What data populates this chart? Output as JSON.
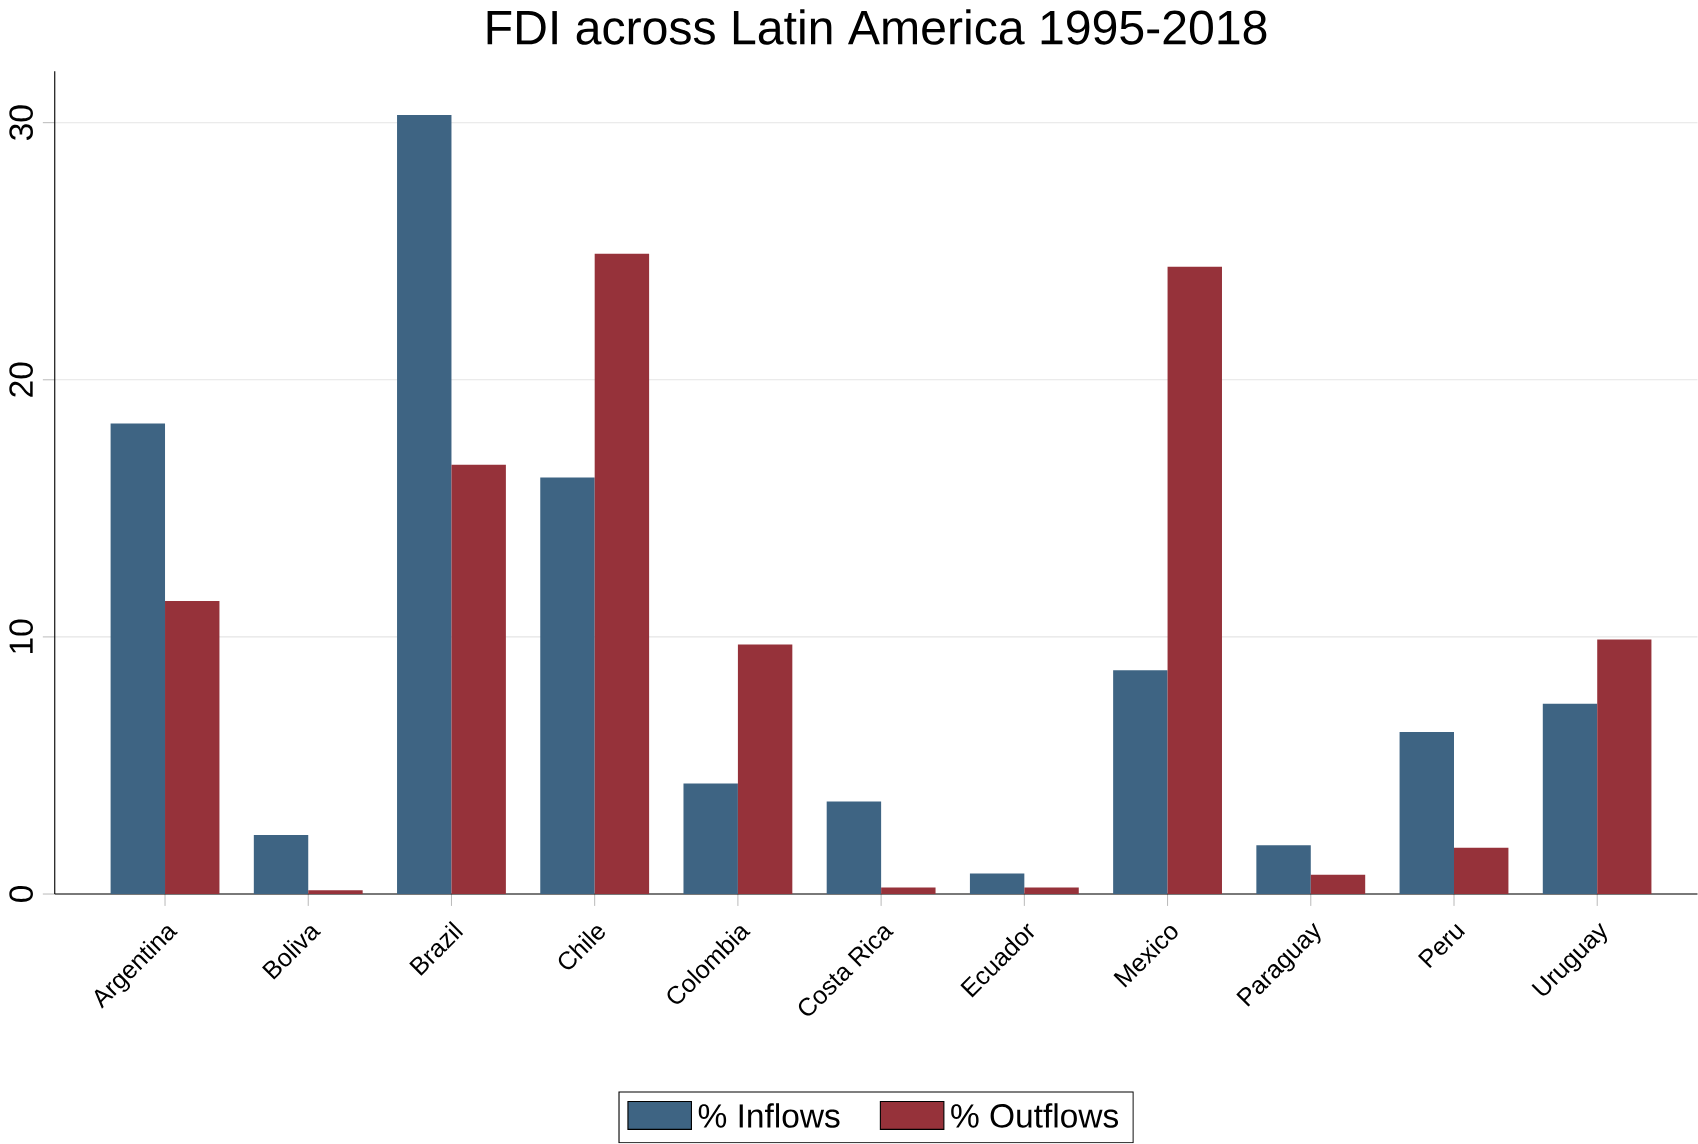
{
  "chart_data": {
    "type": "bar",
    "title": "FDI across Latin America 1995-2018",
    "categories": [
      "Argentina",
      "Boliva",
      "Brazil",
      "Chile",
      "Colombia",
      "Costa Rica",
      "Ecuador",
      "Mexico",
      "Paraguay",
      "Peru",
      "Uruguay"
    ],
    "series": [
      {
        "name": "% Inflows",
        "color": "#3e6483",
        "values": [
          18.3,
          2.3,
          30.3,
          16.2,
          4.3,
          3.6,
          0.8,
          8.7,
          1.9,
          6.3,
          7.4
        ]
      },
      {
        "name": "% Outflows",
        "color": "#96323a",
        "values": [
          11.4,
          0.15,
          16.7,
          24.9,
          9.7,
          0.25,
          0.25,
          24.4,
          0.75,
          1.8,
          9.9
        ]
      }
    ],
    "ylim": [
      0,
      32
    ],
    "yticks": [
      0,
      10,
      20,
      30
    ],
    "grid": "y",
    "legend": "bottom"
  }
}
